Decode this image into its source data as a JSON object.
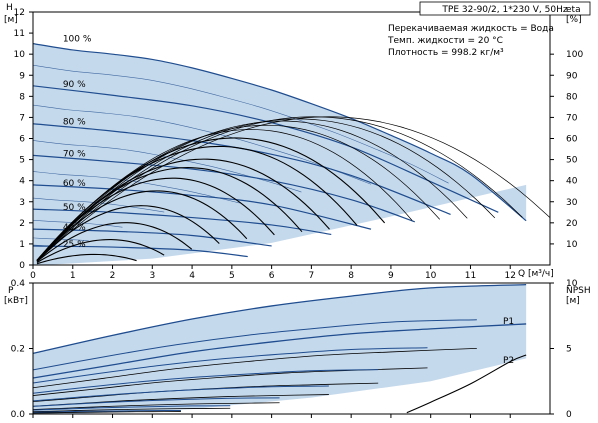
{
  "chart_data": [
    {
      "type": "line",
      "panel": "head-efficiency",
      "title": "TPE 32-90/2, 1*230 V, 50Hz",
      "notes": [
        "Перекачиваемая жидкость = Вода",
        "Темп. жидкости = 20 °C",
        "Плотность = 998.2 кг/м³"
      ],
      "xlabel": "Q [м³/ч]",
      "ylabel": "H",
      "ylabel_unit": "[м]",
      "y2label": "eta",
      "y2label_unit": "[%]",
      "xlim": [
        0,
        13
      ],
      "ylim": [
        0,
        12
      ],
      "y2lim": [
        0,
        120
      ],
      "x_ticks": [
        "0",
        "1",
        "2",
        "3",
        "4",
        "5",
        "6",
        "7",
        "8",
        "9",
        "10",
        "11",
        "12"
      ],
      "y_ticks": [
        "0",
        "1",
        "2",
        "3",
        "4",
        "5",
        "6",
        "7",
        "8",
        "9",
        "10",
        "11",
        "12"
      ],
      "y2_ticks": [
        "10",
        "20",
        "30",
        "40",
        "50",
        "60",
        "70",
        "80",
        "90",
        "100"
      ],
      "grid": false,
      "colors": {
        "pump_curve": "#1f4d8f",
        "efficiency_curve": "#000000",
        "operating_area": "#c5d9ec"
      },
      "speed_curves": [
        {
          "label": "100 %",
          "x": [
            0,
            1,
            2,
            3,
            4,
            5,
            6,
            7,
            8,
            9,
            10,
            11,
            12.4
          ],
          "y": [
            10.5,
            10.2,
            10.0,
            9.75,
            9.35,
            8.85,
            8.3,
            7.65,
            6.95,
            6.15,
            5.3,
            4.3,
            2.1
          ]
        },
        {
          "label": "90 %",
          "x": [
            0,
            2,
            4,
            6,
            8,
            10,
            11.7
          ],
          "y": [
            8.5,
            8.05,
            7.55,
            6.75,
            5.6,
            3.95,
            2.5
          ]
        },
        {
          "label": "80 %",
          "x": [
            0,
            2,
            4,
            6,
            8,
            10.5
          ],
          "y": [
            6.7,
            6.35,
            5.9,
            5.25,
            4.25,
            2.4
          ]
        },
        {
          "label": "70 %",
          "x": [
            0,
            2,
            4,
            6,
            8,
            9.6
          ],
          "y": [
            5.2,
            4.9,
            4.55,
            4.0,
            3.1,
            2.05
          ]
        },
        {
          "label": "60 %",
          "x": [
            0,
            2,
            4,
            6,
            8.5
          ],
          "y": [
            3.8,
            3.6,
            3.3,
            2.85,
            1.7
          ]
        },
        {
          "label": "50 %",
          "x": [
            0,
            2,
            4,
            6,
            7.5
          ],
          "y": [
            2.65,
            2.5,
            2.25,
            1.9,
            1.45
          ]
        },
        {
          "label": "40 %",
          "x": [
            0,
            2,
            4,
            6
          ],
          "y": [
            1.7,
            1.6,
            1.4,
            0.9
          ]
        },
        {
          "label": "25 %",
          "x": [
            0,
            2,
            4,
            5.4
          ],
          "y": [
            0.9,
            0.85,
            0.7,
            0.4
          ]
        }
      ],
      "eta_peaks_percent": [
        70,
        70,
        69,
        68,
        66,
        64,
        60,
        56,
        50,
        46,
        41,
        35,
        28,
        20,
        12,
        5
      ]
    },
    {
      "type": "line",
      "panel": "power-npsh",
      "ylabel": "P",
      "ylabel_unit": "[кВт]",
      "y2label": "NPSH",
      "y2label_unit": "[м]",
      "xlim": [
        0,
        13
      ],
      "ylim": [
        0,
        0.4
      ],
      "y2lim": [
        0,
        10
      ],
      "y_ticks": [
        "0.0",
        "0.2",
        "0.4"
      ],
      "y2_ticks": [
        "0",
        "5",
        "10"
      ],
      "colors": {
        "power_curve": "#1f4d8f",
        "npsh_curve": "#000000",
        "operating_area": "#c5d9ec"
      },
      "series": [
        {
          "name": "P1",
          "x": [
            0,
            2,
            4,
            6,
            8,
            10,
            12.4
          ],
          "values": [
            0.185,
            0.24,
            0.29,
            0.33,
            0.36,
            0.385,
            0.395
          ]
        },
        {
          "name": "P2",
          "x": [
            0,
            2,
            4,
            6,
            8,
            10,
            12.4
          ],
          "values": [
            0.11,
            0.15,
            0.19,
            0.22,
            0.245,
            0.26,
            0.275
          ]
        }
      ],
      "npsh": {
        "x": [
          9.4,
          10,
          11,
          12,
          12.4
        ],
        "values": [
          0.1,
          0.9,
          2.3,
          4.0,
          4.5
        ]
      }
    }
  ]
}
